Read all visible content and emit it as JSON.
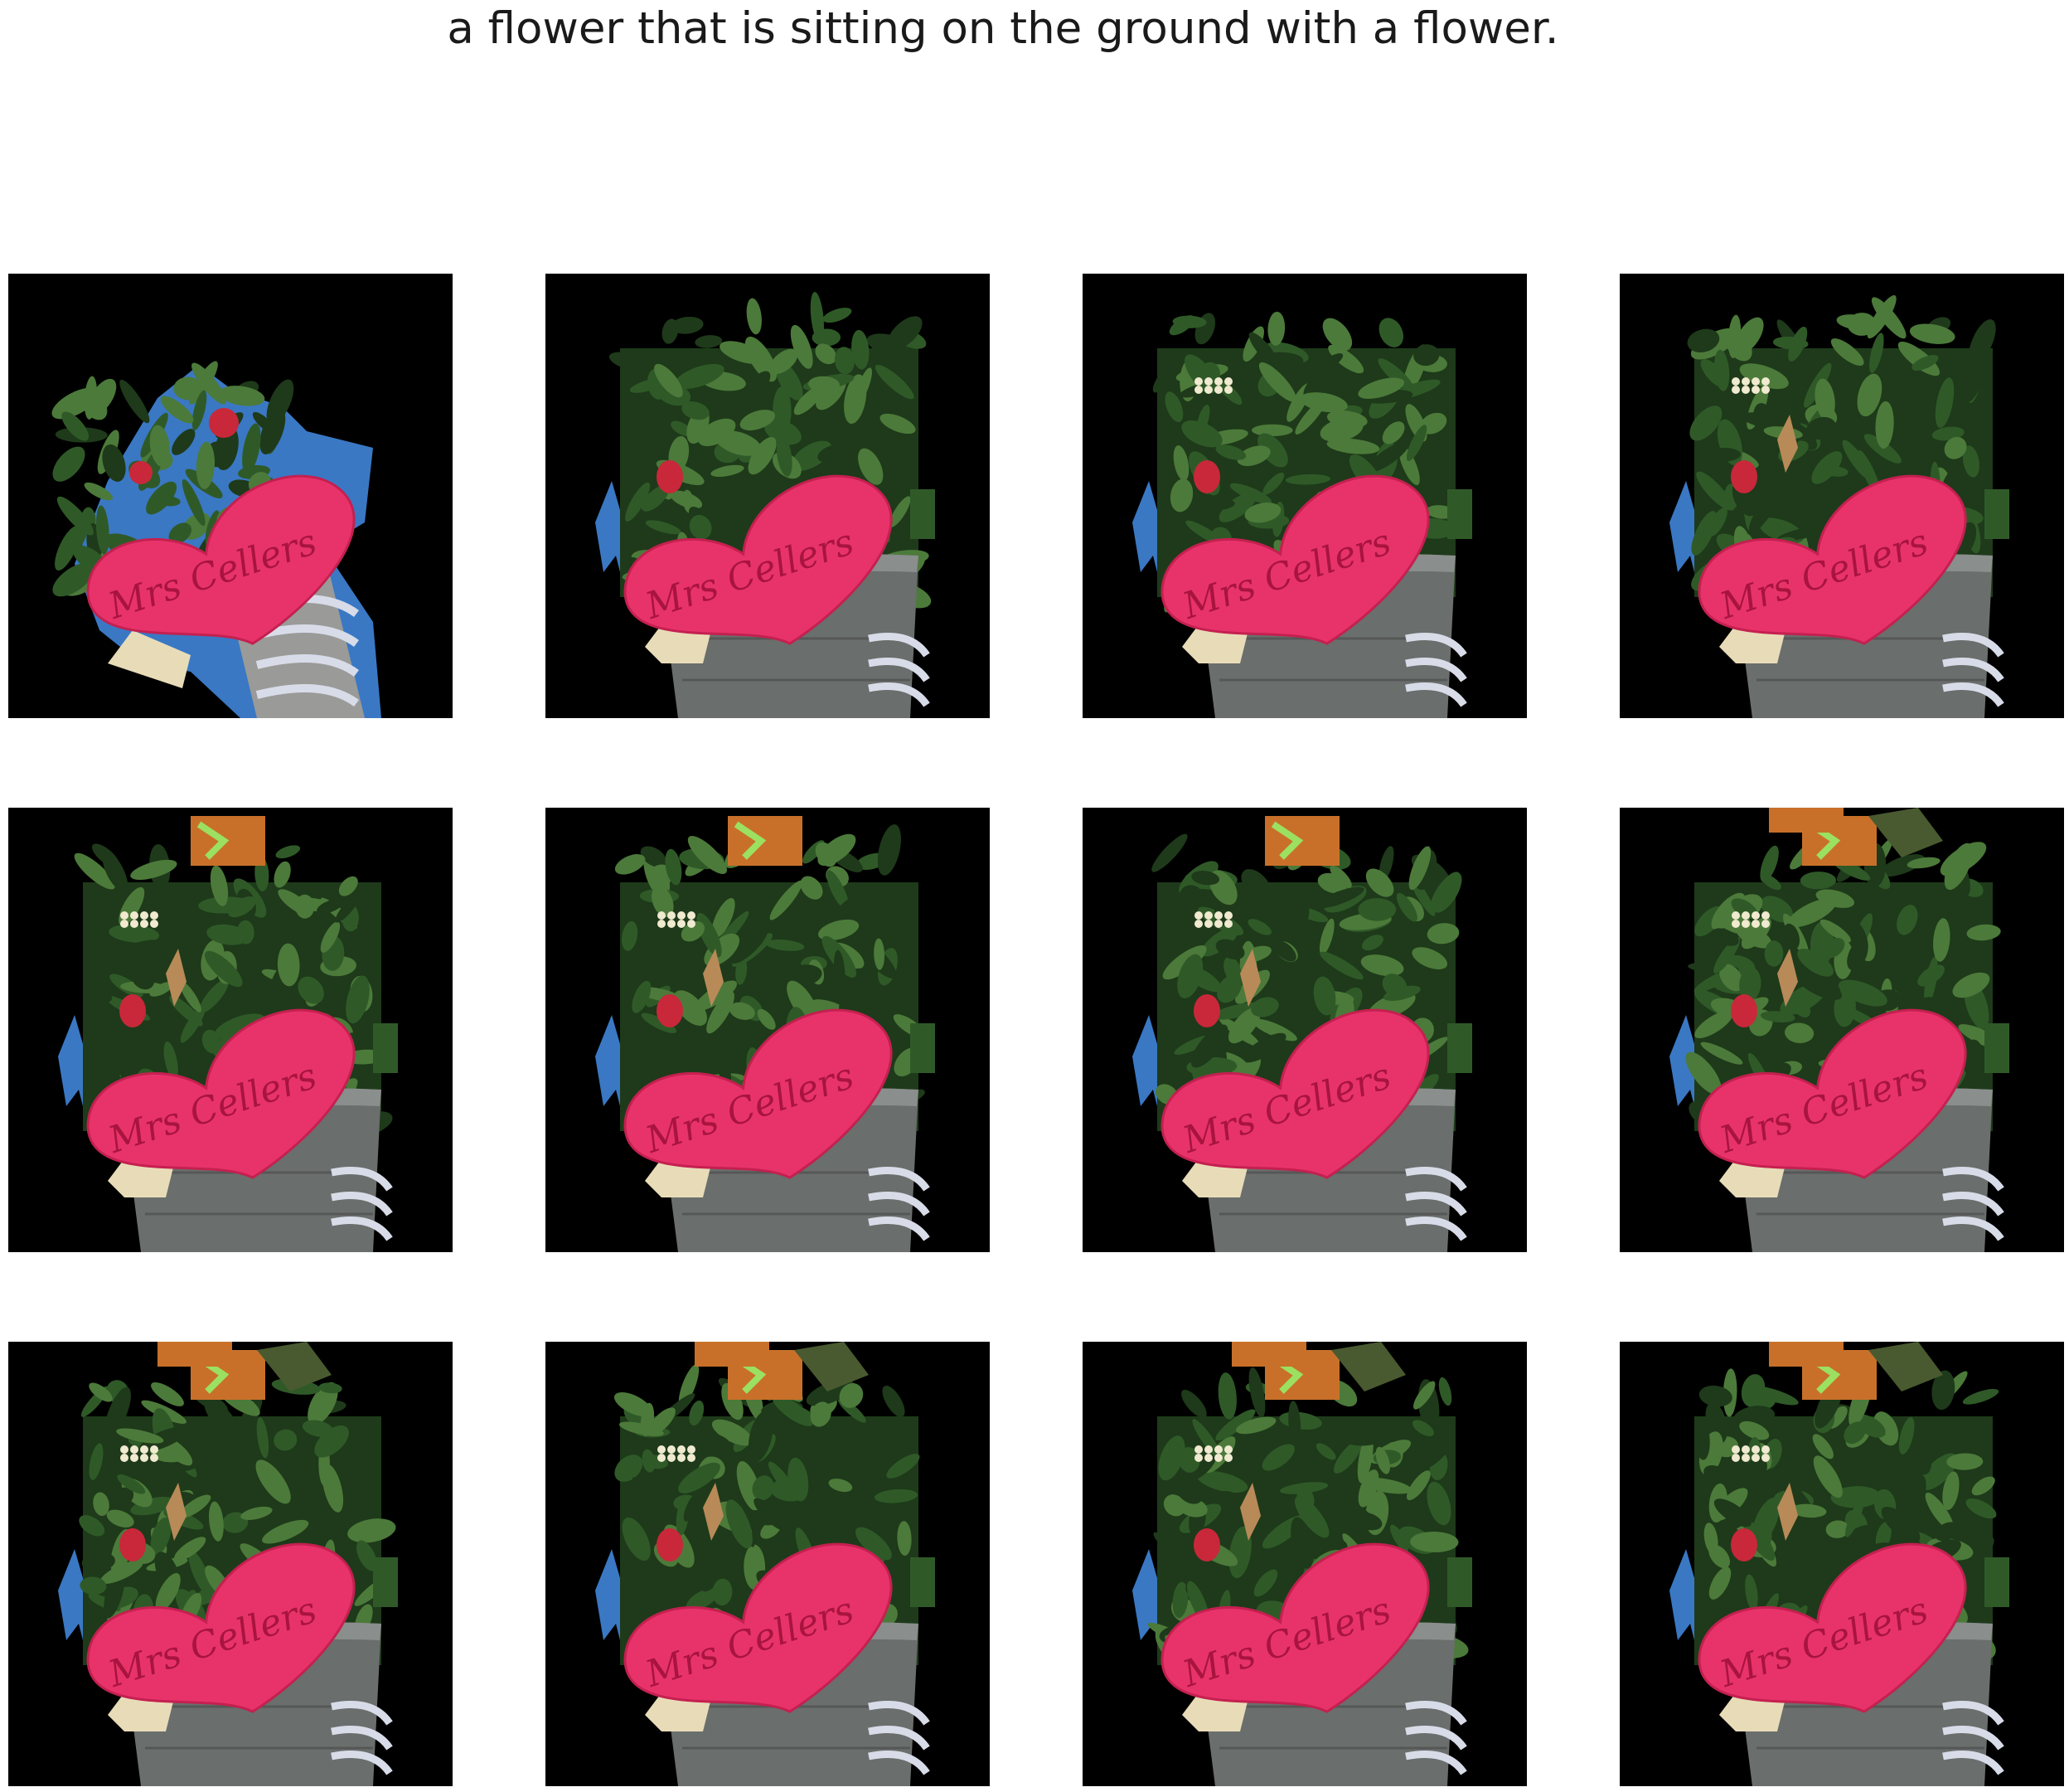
{
  "caption": "a flower that is sitting on the ground with a flower.",
  "grid": {
    "rows": 3,
    "columns": 4
  },
  "panels": [
    {
      "stage": 1,
      "heart_text": "Mrs Cellers",
      "show_pot": false,
      "show_top_flowers": false,
      "show_orange_pot": 0,
      "show_butterfly": false
    },
    {
      "stage": 2,
      "heart_text": "Mrs Cellers",
      "show_pot": true,
      "show_top_flowers": false,
      "show_orange_pot": 0,
      "show_butterfly": false
    },
    {
      "stage": 3,
      "heart_text": "Mrs Cellers",
      "show_pot": true,
      "show_top_flowers": true,
      "show_orange_pot": 0,
      "show_butterfly": false
    },
    {
      "stage": 4,
      "heart_text": "Mrs Cellers",
      "show_pot": true,
      "show_top_flowers": true,
      "show_orange_pot": 0,
      "show_butterfly": true
    },
    {
      "stage": 5,
      "heart_text": "Mrs Cellers",
      "show_pot": true,
      "show_top_flowers": true,
      "show_orange_pot": 1,
      "show_butterfly": true
    },
    {
      "stage": 6,
      "heart_text": "Mrs Cellers",
      "show_pot": true,
      "show_top_flowers": true,
      "show_orange_pot": 1,
      "show_butterfly": true
    },
    {
      "stage": 7,
      "heart_text": "Mrs Cellers",
      "show_pot": true,
      "show_top_flowers": true,
      "show_orange_pot": 1,
      "show_butterfly": true
    },
    {
      "stage": 8,
      "heart_text": "Mrs Cellers",
      "show_pot": true,
      "show_top_flowers": true,
      "show_orange_pot": 2,
      "show_butterfly": true
    },
    {
      "stage": 9,
      "heart_text": "Mrs Cellers",
      "show_pot": true,
      "show_top_flowers": true,
      "show_orange_pot": 2,
      "show_butterfly": true
    },
    {
      "stage": 10,
      "heart_text": "Mrs Cellers",
      "show_pot": true,
      "show_top_flowers": true,
      "show_orange_pot": 2,
      "show_butterfly": true
    },
    {
      "stage": 11,
      "heart_text": "Mrs Cellers",
      "show_pot": true,
      "show_top_flowers": true,
      "show_orange_pot": 2,
      "show_butterfly": true
    },
    {
      "stage": 12,
      "heart_text": "Mrs Cellers",
      "show_pot": true,
      "show_top_flowers": true,
      "show_orange_pot": 2,
      "show_butterfly": true
    }
  ],
  "colors": {
    "background": "#000000",
    "heart": "#e8336a",
    "heart_text": "#a8143e",
    "leaf_dark": "#1e3a1a",
    "leaf_mid": "#2f5a28",
    "leaf_light": "#4c7a3a",
    "pot": "#6a6e6c",
    "pot_light": "#8a8e8c",
    "sky": "#3a78c4",
    "orange_pot": "#c8702a",
    "white_stripes": "#d8dce8",
    "red_bud": "#c8283a"
  }
}
